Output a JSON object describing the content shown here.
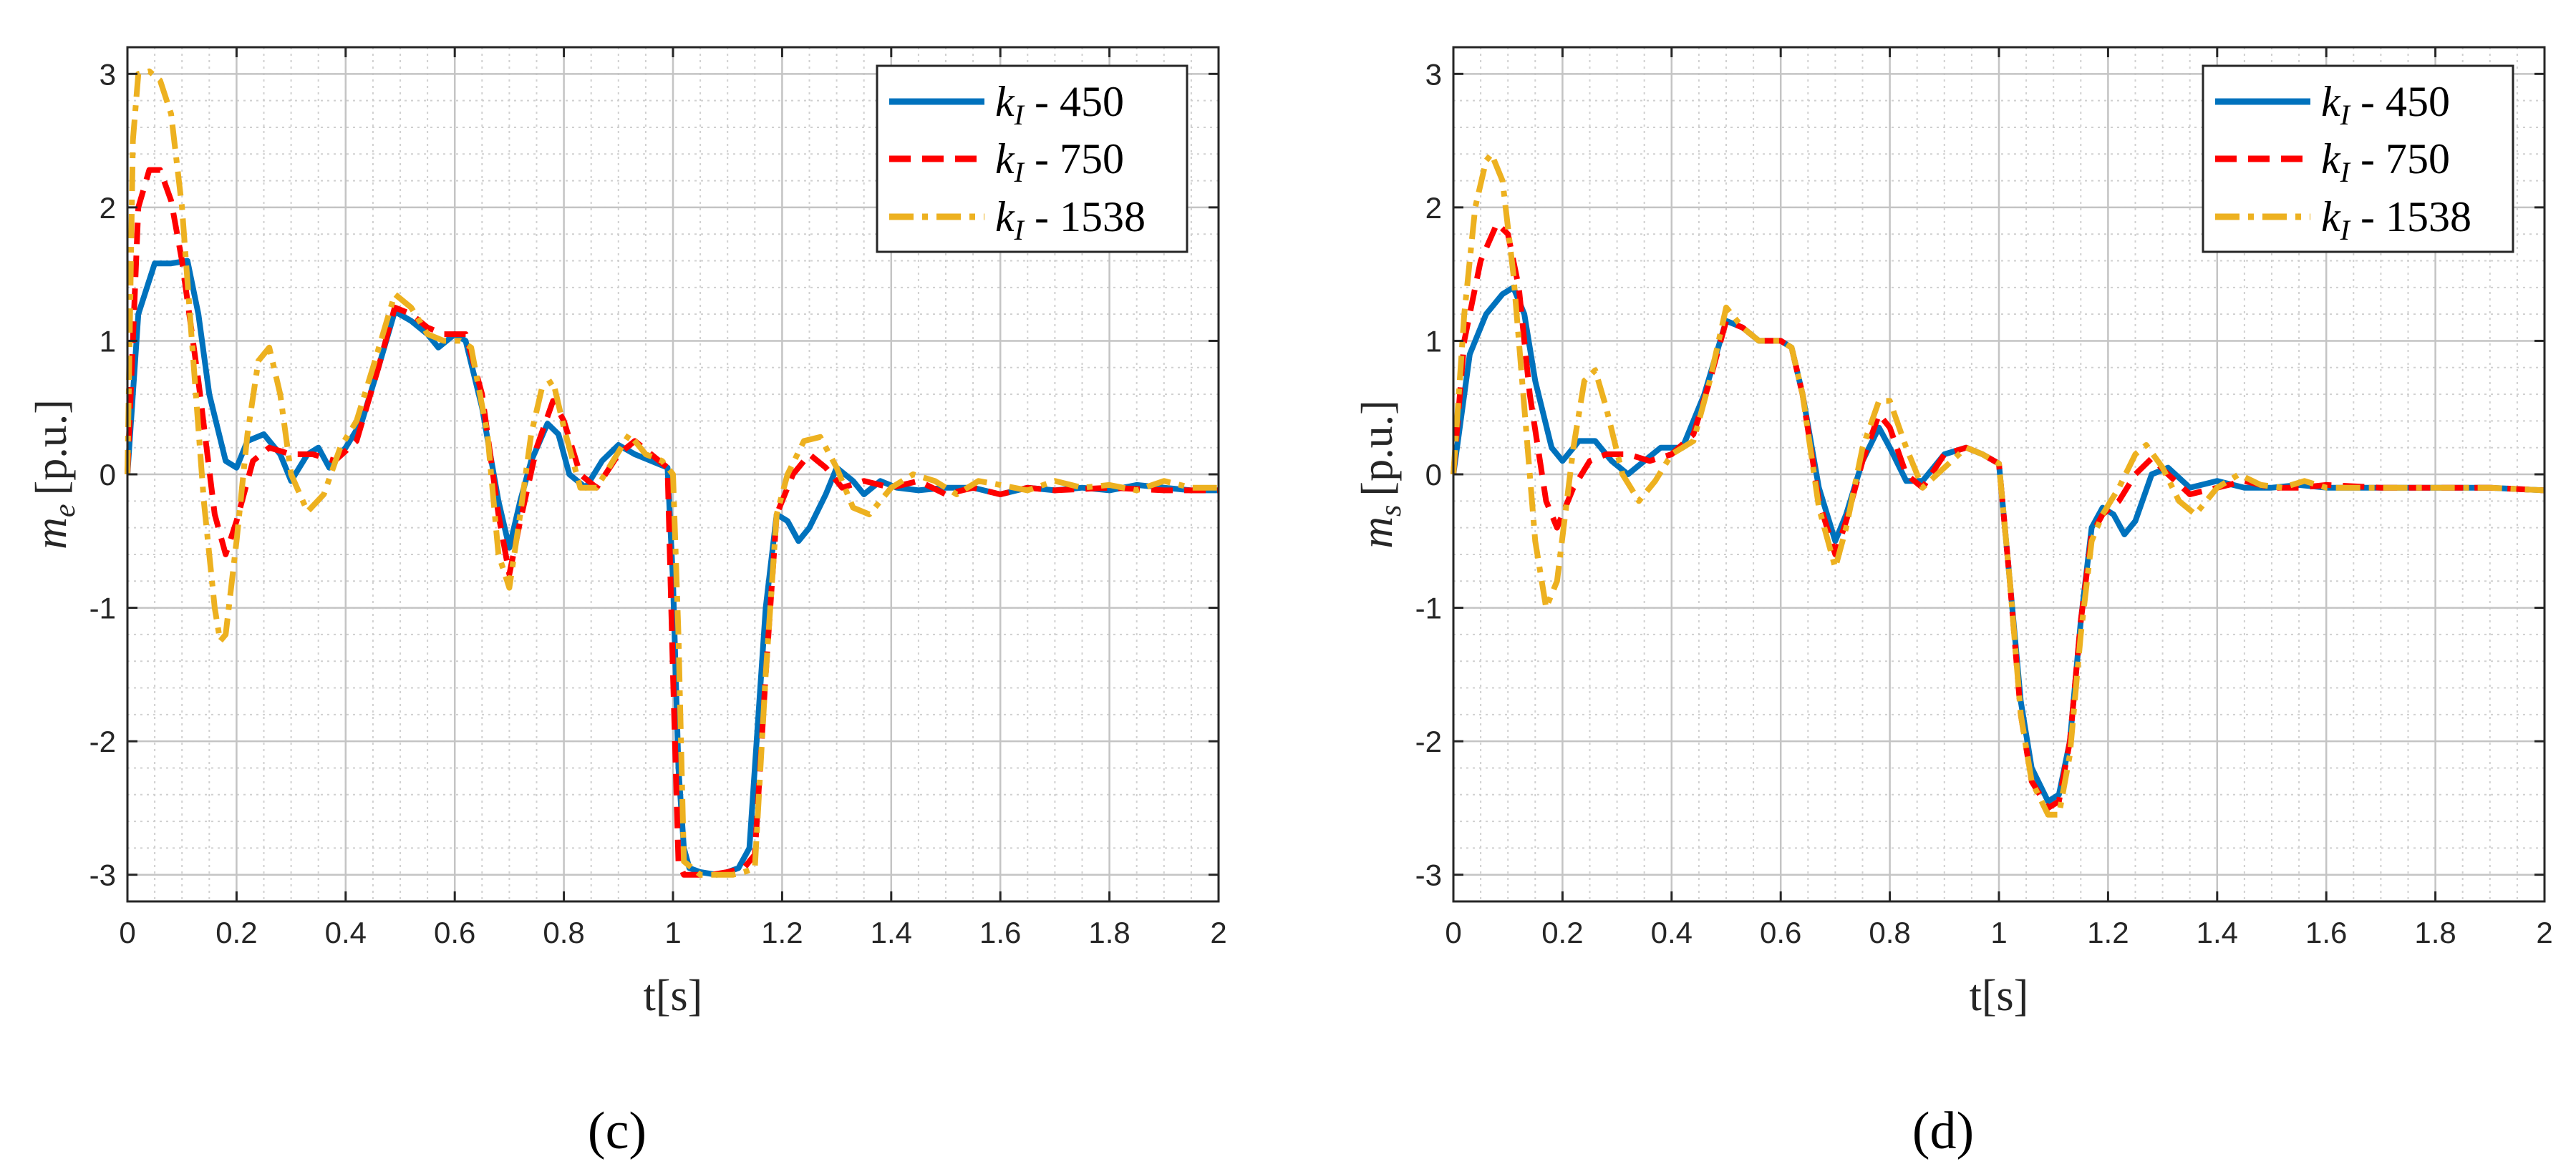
{
  "chart_data": [
    {
      "panel": "(c)",
      "type": "line",
      "xlabel": "t[s]",
      "ylabel": "m_e [p.u.]",
      "ylabel_main": "m",
      "ylabel_sub": "e",
      "ylabel_unit": "[p.u.]",
      "xlim": [
        0,
        2
      ],
      "ylim": [
        -3.2,
        3.2
      ],
      "xticks": [
        0,
        0.2,
        0.4,
        0.6,
        0.8,
        1,
        1.2,
        1.4,
        1.6,
        1.8,
        2
      ],
      "xtick_labels": [
        "0",
        "0.2",
        "0.4",
        "0.6",
        "0.8",
        "1",
        "1.2",
        "1.4",
        "1.6",
        "1.8",
        "2"
      ],
      "yticks": [
        -3,
        -2,
        -1,
        0,
        1,
        2,
        3
      ],
      "ytick_labels": [
        "-3",
        "-2",
        "-1",
        "0",
        "1",
        "2",
        "3"
      ],
      "grid": true,
      "legend_position": "top-right",
      "series": [
        {
          "name": "k_I - 450",
          "name_main": "k",
          "name_sub": "I",
          "name_rest": " - 450",
          "color": "#0072BD",
          "style": "solid",
          "x": [
            0,
            0.02,
            0.05,
            0.08,
            0.11,
            0.13,
            0.15,
            0.18,
            0.2,
            0.22,
            0.25,
            0.28,
            0.3,
            0.33,
            0.35,
            0.37,
            0.4,
            0.43,
            0.46,
            0.49,
            0.52,
            0.55,
            0.57,
            0.6,
            0.62,
            0.65,
            0.68,
            0.7,
            0.72,
            0.74,
            0.77,
            0.79,
            0.81,
            0.84,
            0.87,
            0.9,
            0.93,
            0.96,
            0.99,
            1.0,
            1.01,
            1.02,
            1.03,
            1.05,
            1.08,
            1.1,
            1.12,
            1.14,
            1.15,
            1.17,
            1.19,
            1.21,
            1.23,
            1.25,
            1.28,
            1.3,
            1.33,
            1.35,
            1.38,
            1.41,
            1.45,
            1.5,
            1.55,
            1.6,
            1.65,
            1.7,
            1.75,
            1.8,
            1.85,
            1.9,
            1.95,
            2.0
          ],
          "y": [
            0,
            1.2,
            1.58,
            1.58,
            1.6,
            1.2,
            0.6,
            0.1,
            0.05,
            0.25,
            0.3,
            0.15,
            -0.05,
            0.15,
            0.2,
            0.05,
            0.2,
            0.4,
            0.8,
            1.22,
            1.15,
            1.05,
            0.95,
            1.05,
            1.0,
            0.5,
            -0.2,
            -0.55,
            -0.2,
            0.1,
            0.38,
            0.3,
            0.0,
            -0.1,
            0.1,
            0.22,
            0.15,
            0.1,
            0.05,
            -0.8,
            -2.2,
            -2.8,
            -2.95,
            -2.98,
            -3.0,
            -2.98,
            -2.95,
            -2.8,
            -2.2,
            -1.0,
            -0.3,
            -0.35,
            -0.5,
            -0.4,
            -0.15,
            0.05,
            -0.05,
            -0.15,
            -0.05,
            -0.1,
            -0.12,
            -0.1,
            -0.1,
            -0.15,
            -0.1,
            -0.12,
            -0.1,
            -0.12,
            -0.08,
            -0.1,
            -0.12,
            -0.12
          ]
        },
        {
          "name": "k_I - 750",
          "name_main": "k",
          "name_sub": "I",
          "name_rest": " - 750",
          "color": "#FF0000",
          "style": "dashed",
          "x": [
            0,
            0.02,
            0.04,
            0.06,
            0.08,
            0.1,
            0.13,
            0.16,
            0.18,
            0.2,
            0.23,
            0.26,
            0.3,
            0.34,
            0.38,
            0.42,
            0.46,
            0.49,
            0.52,
            0.55,
            0.58,
            0.6,
            0.62,
            0.65,
            0.68,
            0.7,
            0.72,
            0.75,
            0.78,
            0.8,
            0.83,
            0.86,
            0.9,
            0.93,
            0.96,
            0.99,
            1.0,
            1.01,
            1.02,
            1.04,
            1.07,
            1.1,
            1.13,
            1.15,
            1.17,
            1.19,
            1.22,
            1.25,
            1.28,
            1.31,
            1.35,
            1.4,
            1.45,
            1.5,
            1.55,
            1.6,
            1.65,
            1.7,
            1.8,
            1.9,
            2.0
          ],
          "y": [
            0,
            2.0,
            2.28,
            2.28,
            2.05,
            1.6,
            0.7,
            -0.3,
            -0.6,
            -0.35,
            0.1,
            0.2,
            0.15,
            0.15,
            0.1,
            0.25,
            0.8,
            1.25,
            1.2,
            1.1,
            1.05,
            1.05,
            1.05,
            0.6,
            -0.3,
            -0.75,
            -0.35,
            0.2,
            0.55,
            0.4,
            0.0,
            -0.1,
            0.15,
            0.25,
            0.15,
            0.05,
            -1.5,
            -2.9,
            -3.0,
            -3.0,
            -3.0,
            -2.98,
            -2.95,
            -2.85,
            -1.5,
            -0.3,
            0.0,
            0.15,
            0.05,
            -0.1,
            -0.05,
            -0.1,
            -0.05,
            -0.15,
            -0.1,
            -0.15,
            -0.1,
            -0.12,
            -0.1,
            -0.12,
            -0.12
          ]
        },
        {
          "name": "k_I - 1538",
          "name_main": "k",
          "name_sub": "I",
          "name_rest": " - 1538",
          "color": "#EDB120",
          "style": "dashdot",
          "x": [
            0,
            0.01,
            0.02,
            0.04,
            0.06,
            0.08,
            0.1,
            0.12,
            0.14,
            0.16,
            0.17,
            0.18,
            0.2,
            0.22,
            0.24,
            0.26,
            0.28,
            0.3,
            0.33,
            0.36,
            0.39,
            0.42,
            0.45,
            0.49,
            0.52,
            0.55,
            0.58,
            0.61,
            0.63,
            0.66,
            0.68,
            0.7,
            0.72,
            0.74,
            0.76,
            0.78,
            0.8,
            0.83,
            0.86,
            0.89,
            0.92,
            0.95,
            0.98,
            1.0,
            1.01,
            1.02,
            1.05,
            1.08,
            1.11,
            1.13,
            1.15,
            1.17,
            1.19,
            1.21,
            1.24,
            1.27,
            1.3,
            1.33,
            1.36,
            1.4,
            1.44,
            1.48,
            1.52,
            1.56,
            1.6,
            1.65,
            1.7,
            1.75,
            1.8,
            1.85,
            1.9,
            1.95,
            2.0
          ],
          "y": [
            0,
            2.5,
            3.0,
            3.02,
            2.95,
            2.7,
            2.0,
            0.9,
            -0.2,
            -1.0,
            -1.25,
            -1.2,
            -0.5,
            0.3,
            0.85,
            0.95,
            0.6,
            0.0,
            -0.28,
            -0.15,
            0.2,
            0.4,
            0.8,
            1.35,
            1.25,
            1.05,
            1.0,
            1.0,
            0.95,
            0.3,
            -0.6,
            -0.85,
            -0.3,
            0.3,
            0.65,
            0.7,
            0.35,
            -0.1,
            -0.1,
            0.1,
            0.3,
            0.15,
            0.1,
            0.0,
            -1.2,
            -2.9,
            -3.0,
            -3.0,
            -3.0,
            -2.98,
            -2.95,
            -1.5,
            -0.3,
            0.0,
            0.25,
            0.28,
            0.05,
            -0.25,
            -0.3,
            -0.1,
            0.0,
            -0.05,
            -0.15,
            -0.05,
            -0.08,
            -0.12,
            -0.05,
            -0.1,
            -0.08,
            -0.12,
            -0.05,
            -0.1,
            -0.1
          ]
        }
      ]
    },
    {
      "panel": "(d)",
      "type": "line",
      "xlabel": "t[s]",
      "ylabel": "m_s [p.u.]",
      "ylabel_main": "m",
      "ylabel_sub": "s",
      "ylabel_unit": "[p.u.]",
      "xlim": [
        0,
        2
      ],
      "ylim": [
        -3.2,
        3.2
      ],
      "xticks": [
        0,
        0.2,
        0.4,
        0.6,
        0.8,
        1,
        1.2,
        1.4,
        1.6,
        1.8,
        2
      ],
      "xtick_labels": [
        "0",
        "0.2",
        "0.4",
        "0.6",
        "0.8",
        "1",
        "1.2",
        "1.4",
        "1.6",
        "1.8",
        "2"
      ],
      "yticks": [
        -3,
        -2,
        -1,
        0,
        1,
        2,
        3
      ],
      "ytick_labels": [
        "-3",
        "-2",
        "-1",
        "0",
        "1",
        "2",
        "3"
      ],
      "grid": true,
      "legend_position": "top-right",
      "series": [
        {
          "name": "k_I - 450",
          "name_main": "k",
          "name_sub": "I",
          "name_rest": " - 450",
          "color": "#0072BD",
          "style": "solid",
          "x": [
            0,
            0.03,
            0.06,
            0.09,
            0.11,
            0.13,
            0.15,
            0.18,
            0.2,
            0.23,
            0.26,
            0.29,
            0.32,
            0.35,
            0.38,
            0.42,
            0.46,
            0.5,
            0.53,
            0.56,
            0.6,
            0.62,
            0.64,
            0.67,
            0.7,
            0.72,
            0.75,
            0.78,
            0.8,
            0.83,
            0.86,
            0.9,
            0.94,
            0.97,
            1.0,
            1.02,
            1.04,
            1.06,
            1.09,
            1.11,
            1.13,
            1.15,
            1.17,
            1.19,
            1.21,
            1.23,
            1.25,
            1.28,
            1.31,
            1.35,
            1.4,
            1.45,
            1.5,
            1.55,
            1.6,
            1.7,
            1.8,
            1.9,
            2.0
          ],
          "y": [
            0,
            0.9,
            1.2,
            1.35,
            1.4,
            1.2,
            0.7,
            0.2,
            0.1,
            0.25,
            0.25,
            0.1,
            0.0,
            0.1,
            0.2,
            0.2,
            0.6,
            1.15,
            1.1,
            1.0,
            1.0,
            0.95,
            0.6,
            -0.1,
            -0.5,
            -0.3,
            0.1,
            0.35,
            0.2,
            -0.05,
            -0.05,
            0.15,
            0.2,
            0.15,
            0.08,
            -0.8,
            -1.7,
            -2.2,
            -2.45,
            -2.4,
            -2.0,
            -1.1,
            -0.4,
            -0.25,
            -0.3,
            -0.45,
            -0.35,
            0.0,
            0.05,
            -0.1,
            -0.05,
            -0.1,
            -0.1,
            -0.08,
            -0.1,
            -0.1,
            -0.1,
            -0.1,
            -0.12
          ]
        },
        {
          "name": "k_I - 750",
          "name_main": "k",
          "name_sub": "I",
          "name_rest": " - 750",
          "color": "#FF0000",
          "style": "dashed",
          "x": [
            0,
            0.02,
            0.05,
            0.08,
            0.1,
            0.12,
            0.14,
            0.17,
            0.19,
            0.22,
            0.25,
            0.28,
            0.32,
            0.36,
            0.4,
            0.44,
            0.47,
            0.5,
            0.53,
            0.56,
            0.6,
            0.62,
            0.64,
            0.67,
            0.7,
            0.72,
            0.75,
            0.78,
            0.8,
            0.83,
            0.86,
            0.9,
            0.94,
            0.97,
            1.0,
            1.02,
            1.04,
            1.06,
            1.09,
            1.11,
            1.13,
            1.15,
            1.17,
            1.19,
            1.22,
            1.25,
            1.28,
            1.31,
            1.35,
            1.4,
            1.45,
            1.5,
            1.55,
            1.6,
            1.7,
            1.8,
            1.9,
            2.0
          ],
          "y": [
            0,
            1.0,
            1.6,
            1.88,
            1.8,
            1.4,
            0.6,
            -0.2,
            -0.4,
            -0.1,
            0.1,
            0.15,
            0.15,
            0.1,
            0.15,
            0.3,
            0.7,
            1.15,
            1.1,
            1.0,
            1.0,
            0.95,
            0.6,
            -0.2,
            -0.6,
            -0.35,
            0.1,
            0.45,
            0.35,
            0.0,
            -0.1,
            0.15,
            0.2,
            0.15,
            0.08,
            -0.8,
            -1.8,
            -2.3,
            -2.5,
            -2.45,
            -2.0,
            -1.1,
            -0.45,
            -0.3,
            -0.2,
            0.0,
            0.12,
            0.0,
            -0.15,
            -0.1,
            -0.05,
            -0.1,
            -0.1,
            -0.08,
            -0.1,
            -0.1,
            -0.1,
            -0.12
          ]
        },
        {
          "name": "k_I - 1538",
          "name_main": "k",
          "name_sub": "I",
          "name_rest": " - 1538",
          "color": "#EDB120",
          "style": "dashdot",
          "x": [
            0,
            0.02,
            0.04,
            0.06,
            0.07,
            0.09,
            0.11,
            0.13,
            0.15,
            0.17,
            0.19,
            0.22,
            0.24,
            0.26,
            0.28,
            0.31,
            0.34,
            0.37,
            0.4,
            0.44,
            0.47,
            0.5,
            0.53,
            0.56,
            0.6,
            0.62,
            0.64,
            0.67,
            0.7,
            0.72,
            0.75,
            0.78,
            0.8,
            0.83,
            0.86,
            0.9,
            0.94,
            0.97,
            1.0,
            1.02,
            1.04,
            1.06,
            1.09,
            1.11,
            1.13,
            1.15,
            1.17,
            1.19,
            1.22,
            1.25,
            1.27,
            1.3,
            1.33,
            1.36,
            1.4,
            1.44,
            1.48,
            1.52,
            1.56,
            1.6,
            1.7,
            1.8,
            1.9,
            2.0
          ],
          "y": [
            0,
            1.2,
            2.0,
            2.35,
            2.4,
            2.2,
            1.5,
            0.5,
            -0.5,
            -1.0,
            -0.8,
            0.2,
            0.7,
            0.78,
            0.5,
            0.0,
            -0.2,
            -0.05,
            0.15,
            0.25,
            0.7,
            1.25,
            1.1,
            1.0,
            1.0,
            0.95,
            0.6,
            -0.25,
            -0.7,
            -0.4,
            0.2,
            0.55,
            0.55,
            0.2,
            -0.1,
            0.05,
            0.2,
            0.15,
            0.08,
            -0.8,
            -1.8,
            -2.3,
            -2.55,
            -2.55,
            -2.1,
            -1.2,
            -0.5,
            -0.3,
            -0.1,
            0.15,
            0.22,
            0.05,
            -0.2,
            -0.3,
            -0.1,
            0.0,
            -0.08,
            -0.1,
            -0.05,
            -0.1,
            -0.1,
            -0.1,
            -0.1,
            -0.12
          ]
        }
      ]
    }
  ]
}
